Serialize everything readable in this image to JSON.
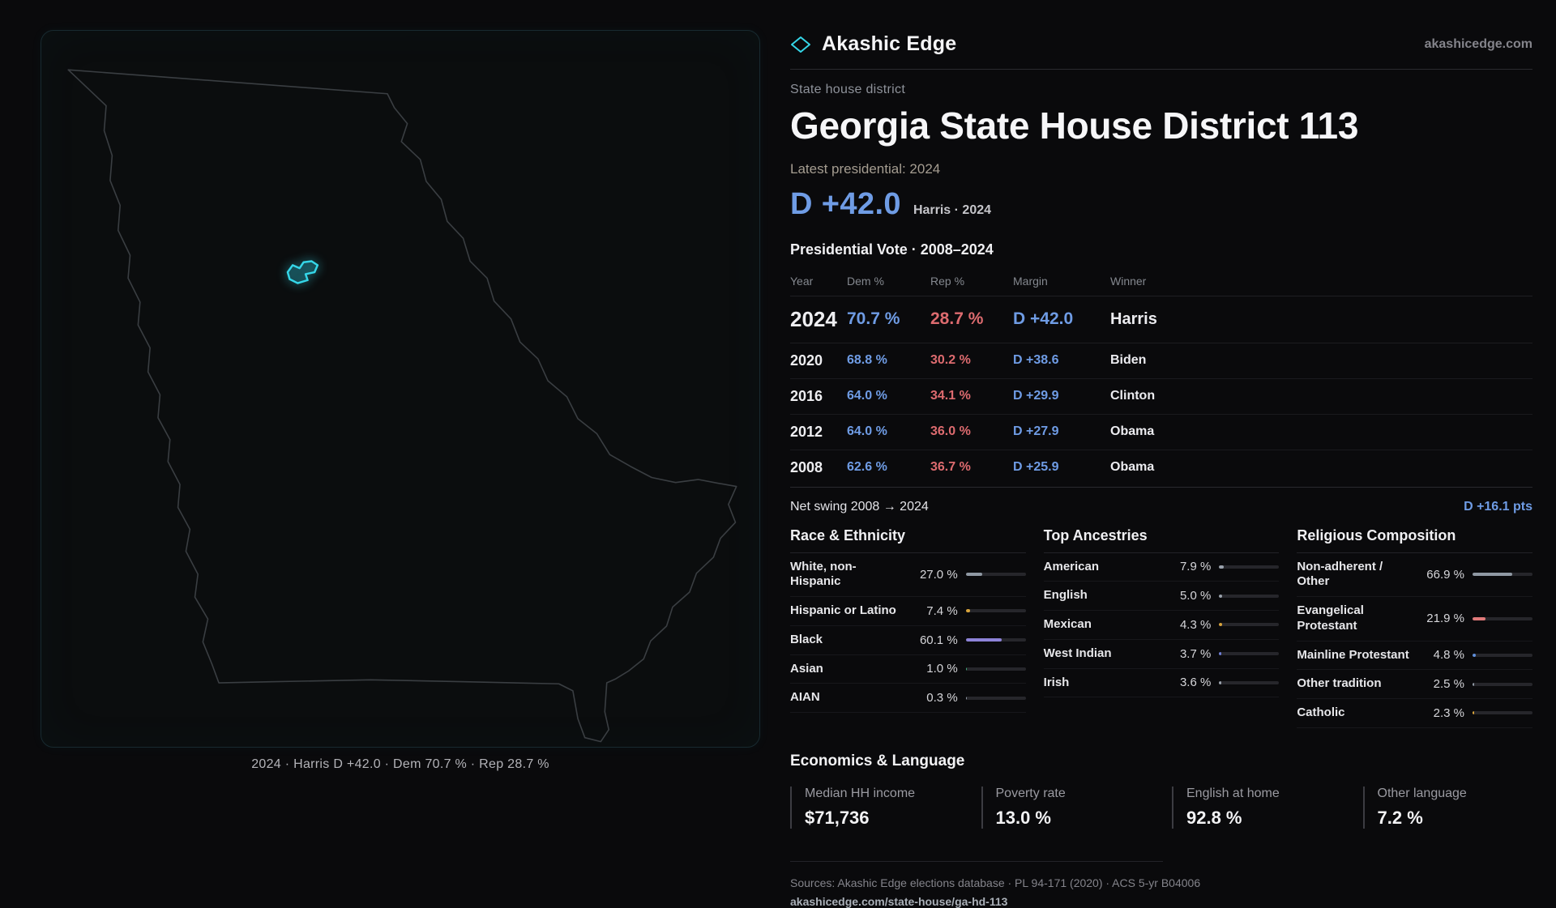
{
  "header": {
    "brand": "Akashic Edge",
    "domain": "akashicedge.com",
    "logo_icon": "diamond-icon"
  },
  "colors": {
    "accent_cyan": "#35d6e8",
    "dem_blue": "#6f9ce5",
    "rep_red": "#dd6b6f"
  },
  "map": {
    "caption": "2024 · Harris D +42.0 · Dem 70.7 % · Rep 28.7 %",
    "highlight": "district-113"
  },
  "district": {
    "eyebrow": "State house district",
    "title": "Georgia State House District 113",
    "latest_label": "Latest presidential: 2024",
    "headline_margin": "D +42.0",
    "headline_sub": "Harris · 2024"
  },
  "vote_table": {
    "title": "Presidential Vote · 2008–2024",
    "columns": [
      "Year",
      "Dem %",
      "Rep %",
      "Margin",
      "Winner"
    ],
    "rows": [
      {
        "year": "2024",
        "dem": "70.7 %",
        "rep": "28.7 %",
        "margin": "D +42.0",
        "winner": "Harris"
      },
      {
        "year": "2020",
        "dem": "68.8 %",
        "rep": "30.2 %",
        "margin": "D +38.6",
        "winner": "Biden"
      },
      {
        "year": "2016",
        "dem": "64.0 %",
        "rep": "34.1 %",
        "margin": "D +29.9",
        "winner": "Clinton"
      },
      {
        "year": "2012",
        "dem": "64.0 %",
        "rep": "36.0 %",
        "margin": "D +27.9",
        "winner": "Obama"
      },
      {
        "year": "2008",
        "dem": "62.6 %",
        "rep": "36.7 %",
        "margin": "D +25.9",
        "winner": "Obama"
      }
    ]
  },
  "swing": {
    "label": "Net swing 2008 → 2024",
    "value": "D +16.1 pts"
  },
  "demographics": {
    "race": {
      "title": "Race & Ethnicity",
      "rows": [
        {
          "label": "White, non-Hispanic",
          "value": "27.0 %",
          "pct": 27.0,
          "color": "#8f98a3"
        },
        {
          "label": "Hispanic or Latino",
          "value": "7.4 %",
          "pct": 7.4,
          "color": "#d9a43b"
        },
        {
          "label": "Black",
          "value": "60.1 %",
          "pct": 60.1,
          "color": "#8d83d8"
        },
        {
          "label": "Asian",
          "value": "1.0 %",
          "pct": 1.0,
          "color": "#3fae7a"
        },
        {
          "label": "AIAN",
          "value": "0.3 %",
          "pct": 0.3,
          "color": "#8f98a3"
        }
      ]
    },
    "ancestries": {
      "title": "Top Ancestries",
      "rows": [
        {
          "label": "American",
          "value": "7.9 %",
          "pct": 7.9,
          "color": "#9aa2ac"
        },
        {
          "label": "English",
          "value": "5.0 %",
          "pct": 5.0,
          "color": "#9aa2ac"
        },
        {
          "label": "Mexican",
          "value": "4.3 %",
          "pct": 4.3,
          "color": "#d9a43b"
        },
        {
          "label": "West Indian",
          "value": "3.7 %",
          "pct": 3.7,
          "color": "#6f7fd8"
        },
        {
          "label": "Irish",
          "value": "3.6 %",
          "pct": 3.6,
          "color": "#9aa2ac"
        }
      ]
    },
    "religion": {
      "title": "Religious Composition",
      "rows": [
        {
          "label": "Non-adherent / Other",
          "value": "66.9 %",
          "pct": 66.9,
          "color": "#8f98a3"
        },
        {
          "label": "Evangelical Protestant",
          "value": "21.9 %",
          "pct": 21.9,
          "color": "#e07a7a"
        },
        {
          "label": "Mainline Protestant",
          "value": "4.8 %",
          "pct": 4.8,
          "color": "#5f8fdb"
        },
        {
          "label": "Other tradition",
          "value": "2.5 %",
          "pct": 2.5,
          "color": "#8f98a3"
        },
        {
          "label": "Catholic",
          "value": "2.3 %",
          "pct": 2.3,
          "color": "#d9a43b"
        }
      ]
    }
  },
  "economics": {
    "title": "Economics & Language",
    "stats": [
      {
        "label": "Median HH income",
        "value": "$71,736"
      },
      {
        "label": "Poverty rate",
        "value": "13.0 %"
      },
      {
        "label": "English at home",
        "value": "92.8 %"
      },
      {
        "label": "Other language",
        "value": "7.2 %"
      }
    ]
  },
  "footer": {
    "sources": "Sources: Akashic Edge elections database · PL 94-171 (2020) · ACS 5-yr B04006",
    "link": "akashicedge.com/state-house/ga-hd-113"
  }
}
